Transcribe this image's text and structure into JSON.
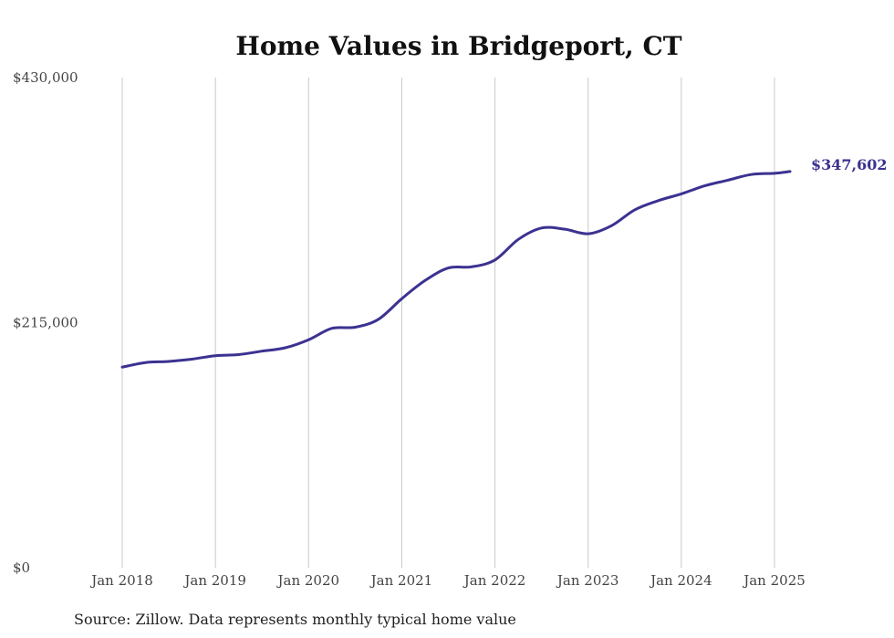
{
  "chart_data": {
    "type": "line",
    "title": "Home Values in Bridgeport, CT",
    "source": "Source: Zillow. Data represents monthly typical home value",
    "ylim": [
      0,
      430000
    ],
    "y_ticks": [
      {
        "value": 0,
        "label": "$0"
      },
      {
        "value": 215000,
        "label": "$215,000"
      },
      {
        "value": 430000,
        "label": "$430,000"
      }
    ],
    "x_ticks": [
      {
        "value": "2018-01",
        "label": "Jan 2018"
      },
      {
        "value": "2019-01",
        "label": "Jan 2019"
      },
      {
        "value": "2020-01",
        "label": "Jan 2020"
      },
      {
        "value": "2021-01",
        "label": "Jan 2021"
      },
      {
        "value": "2022-01",
        "label": "Jan 2022"
      },
      {
        "value": "2023-01",
        "label": "Jan 2023"
      },
      {
        "value": "2024-01",
        "label": "Jan 2024"
      },
      {
        "value": "2025-01",
        "label": "Jan 2025"
      }
    ],
    "grid": {
      "vertical": true,
      "horizontal": false
    },
    "colors": {
      "line": "#3b3291",
      "end_label": "#3b3291"
    },
    "end_label": "$347,602",
    "series": [
      {
        "x": [
          "2018-01",
          "2018-04",
          "2018-07",
          "2018-10",
          "2019-01",
          "2019-04",
          "2019-07",
          "2019-10",
          "2020-01",
          "2020-04",
          "2020-07",
          "2020-10",
          "2021-01",
          "2021-04",
          "2021-07",
          "2021-10",
          "2022-01",
          "2022-04",
          "2022-07",
          "2022-10",
          "2023-01",
          "2023-04",
          "2023-07",
          "2023-10",
          "2024-01",
          "2024-04",
          "2024-07",
          "2024-10",
          "2025-01",
          "2025-03"
        ],
        "values": [
          176000,
          180000,
          181000,
          183000,
          186000,
          187000,
          190000,
          193000,
          200000,
          210000,
          211000,
          218000,
          236000,
          252000,
          263000,
          264000,
          270000,
          288000,
          298000,
          297000,
          293000,
          300000,
          314000,
          322000,
          328000,
          335000,
          340000,
          345000,
          346000,
          347602
        ]
      }
    ]
  }
}
